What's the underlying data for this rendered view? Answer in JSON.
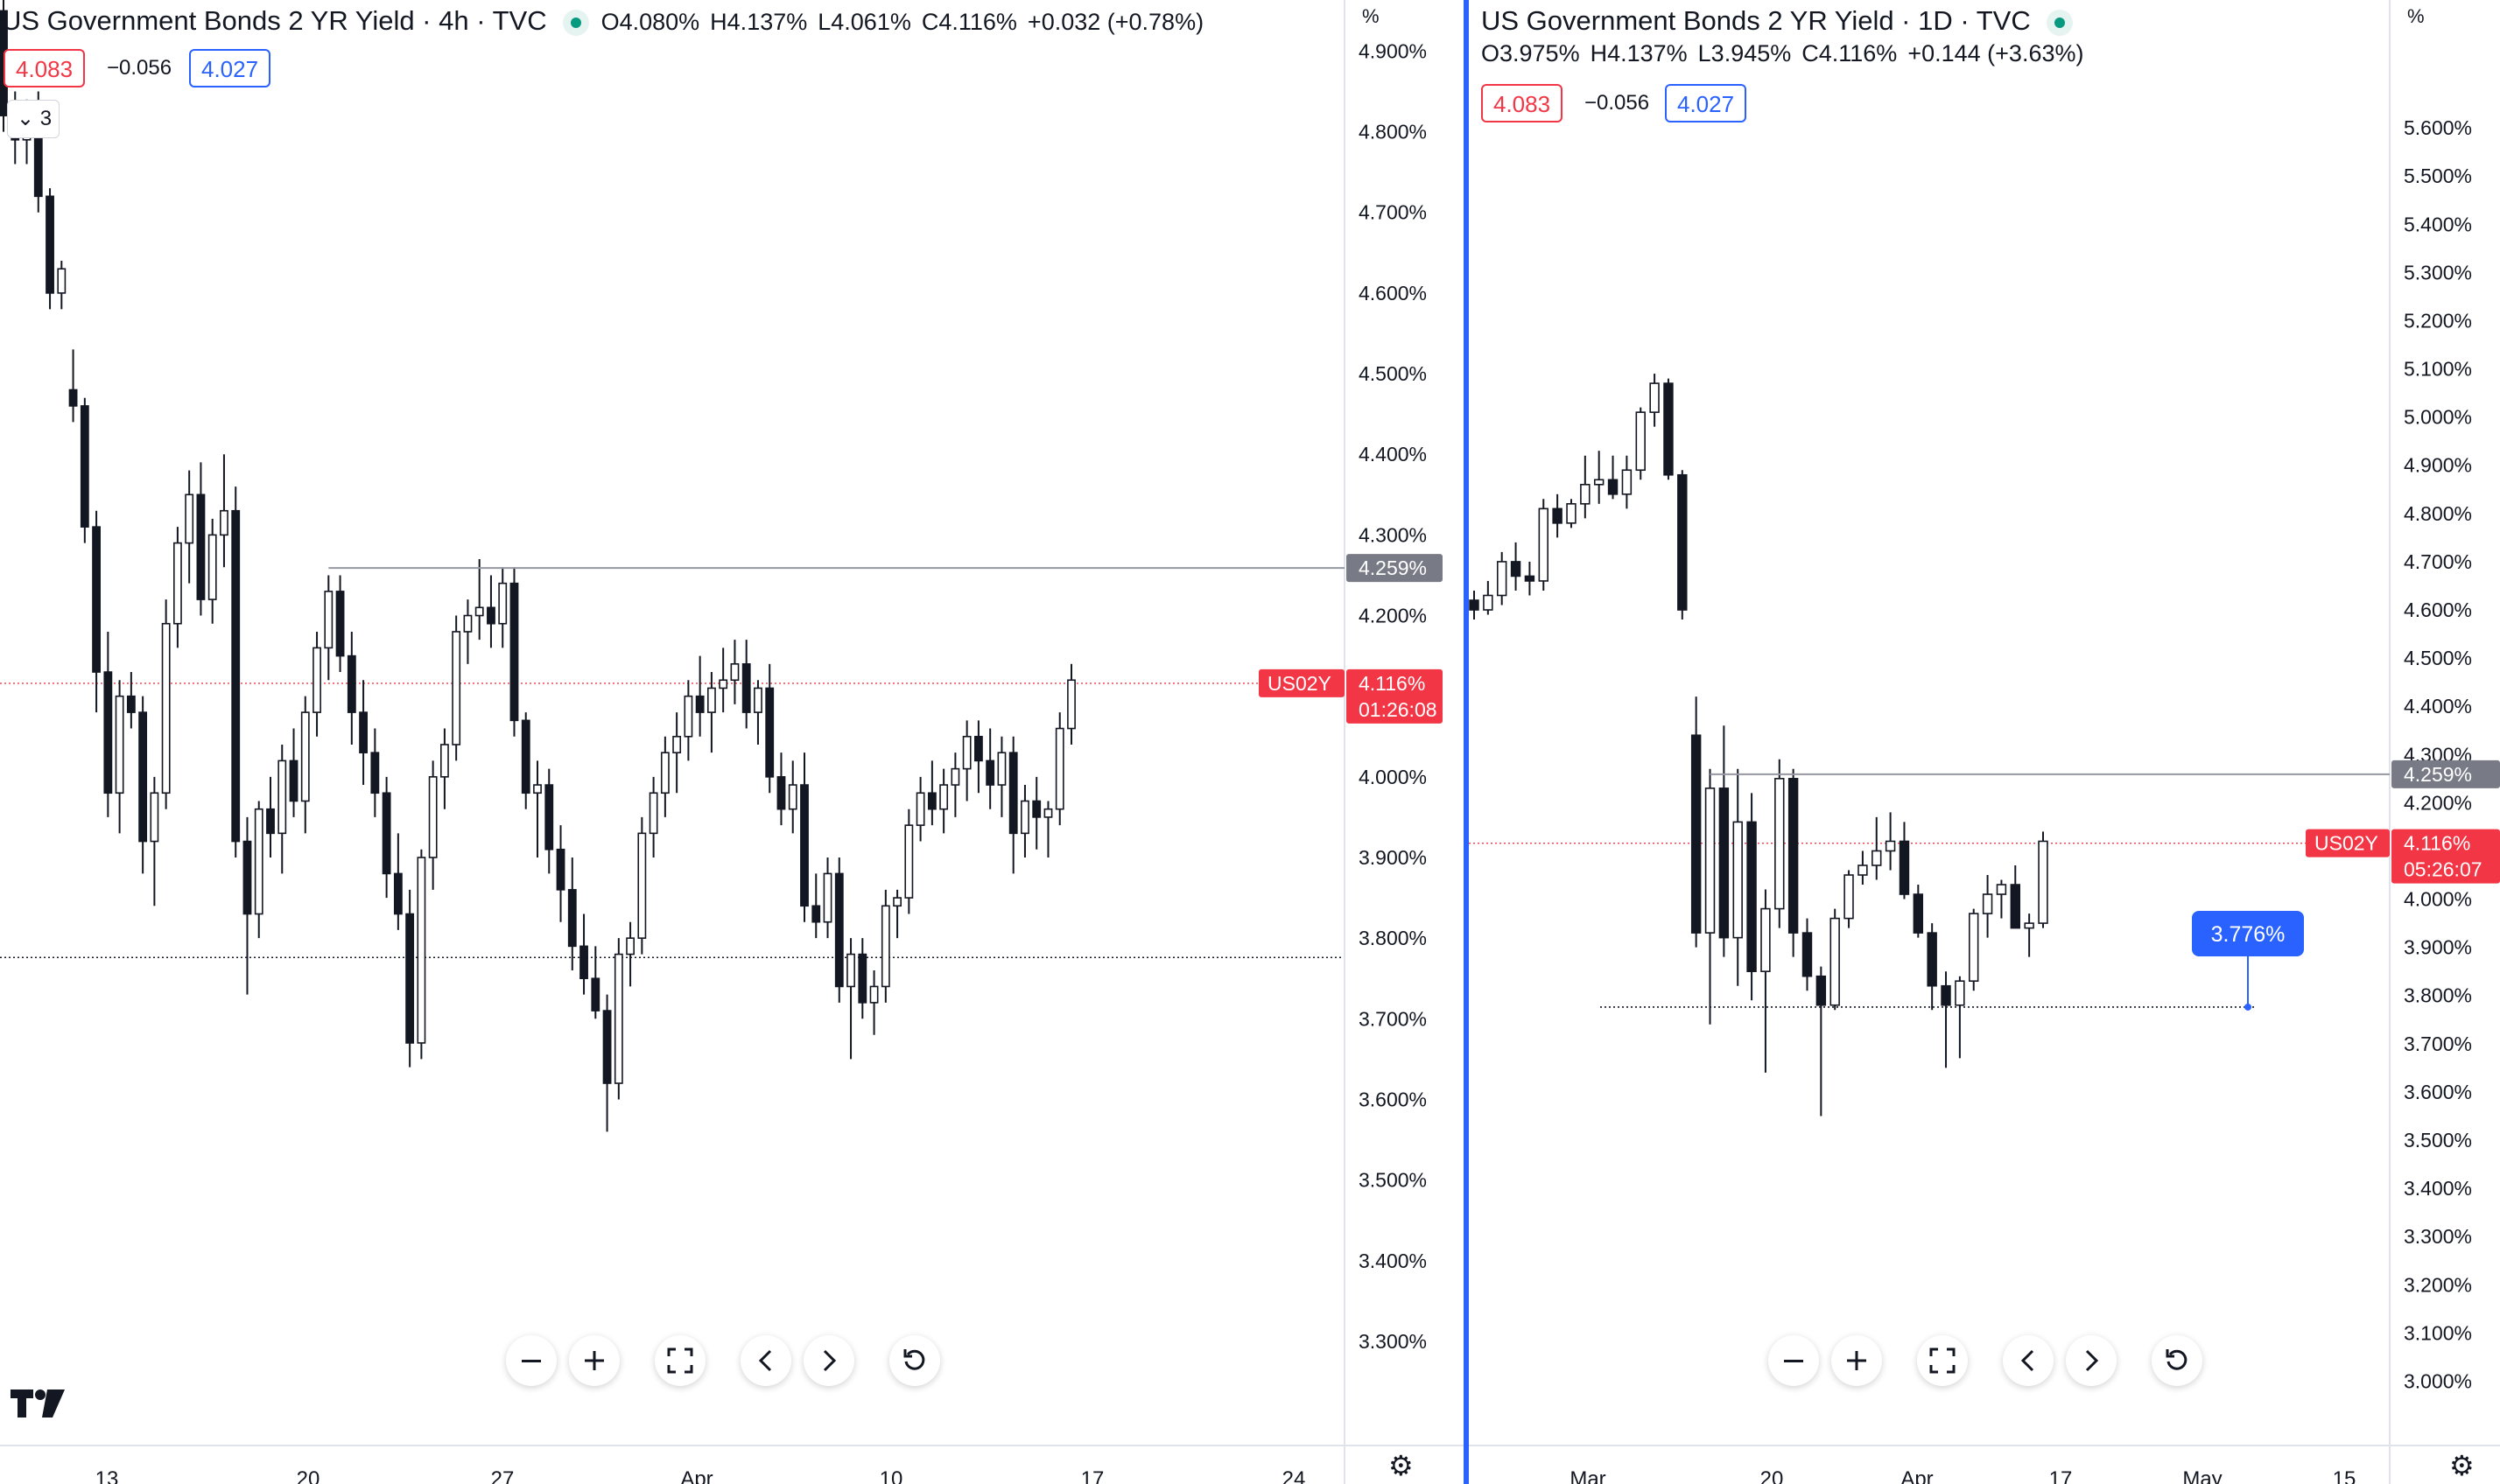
{
  "colors": {
    "accent": "#2962ff",
    "down": "#f23645",
    "grid": "#ffffff",
    "text": "#131722"
  },
  "left": {
    "title": "US Government Bonds 2 YR Yield · 4h · TVC",
    "ohlc": {
      "o": "O4.080%",
      "h": "H4.137%",
      "l": "L4.061%",
      "c": "C4.116%",
      "chg": "+0.032 (+0.78%)"
    },
    "sell": "4.083",
    "spread": "−0.056",
    "buy": "4.027",
    "indicators_count": "3",
    "symbol_tag": "US02Y",
    "last_price": "4.116%",
    "countdown": "01:26:08",
    "level_label": "4.259%",
    "axis_unit": "%"
  },
  "right": {
    "title": "US Government Bonds 2 YR Yield · 1D · TVC",
    "ohlc": {
      "o": "O3.975%",
      "h": "H4.137%",
      "l": "L3.945%",
      "c": "C4.116%",
      "chg": "+0.144 (+3.63%)"
    },
    "sell": "4.083",
    "spread": "−0.056",
    "buy": "4.027",
    "symbol_tag": "US02Y",
    "last_price": "4.116%",
    "countdown": "05:26:07",
    "level_label": "4.259%",
    "alert_label": "3.776%",
    "axis_unit": "%"
  },
  "chart_data": [
    {
      "type": "candlestick",
      "title": "US Government Bonds 2 YR Yield · 4h · TVC",
      "y_axis_unit": "%",
      "ylim": [
        3.25,
        4.92
      ],
      "y_ticks": [
        "4.900%",
        "4.800%",
        "4.700%",
        "4.600%",
        "4.500%",
        "4.400%",
        "4.300%",
        "4.200%",
        "4.100%",
        "4.000%",
        "3.900%",
        "3.800%",
        "3.700%",
        "3.600%",
        "3.500%",
        "3.400%",
        "3.300%"
      ],
      "x_ticks": [
        "13",
        "20",
        "27",
        "Apr",
        "10",
        "17",
        "24"
      ],
      "last_price": 4.116,
      "horizontal_line": 4.259,
      "dotted_line": 3.776,
      "candles_ohlc": [
        [
          4.95,
          4.97,
          4.8,
          4.82
        ],
        [
          4.82,
          4.85,
          4.76,
          4.79
        ],
        [
          4.79,
          4.84,
          4.76,
          4.83
        ],
        [
          4.83,
          4.85,
          4.7,
          4.72
        ],
        [
          4.72,
          4.73,
          4.58,
          4.6
        ],
        [
          4.6,
          4.64,
          4.58,
          4.63
        ],
        [
          4.48,
          4.53,
          4.44,
          4.46
        ],
        [
          4.46,
          4.47,
          4.29,
          4.31
        ],
        [
          4.31,
          4.33,
          4.08,
          4.13
        ],
        [
          4.13,
          4.18,
          3.95,
          3.98
        ],
        [
          3.98,
          4.12,
          3.93,
          4.1
        ],
        [
          4.1,
          4.13,
          4.06,
          4.08
        ],
        [
          4.08,
          4.1,
          3.88,
          3.92
        ],
        [
          3.92,
          4.0,
          3.84,
          3.98
        ],
        [
          3.98,
          4.22,
          3.96,
          4.19
        ],
        [
          4.19,
          4.31,
          4.16,
          4.29
        ],
        [
          4.29,
          4.38,
          4.24,
          4.35
        ],
        [
          4.35,
          4.39,
          4.2,
          4.22
        ],
        [
          4.22,
          4.32,
          4.19,
          4.3
        ],
        [
          4.3,
          4.4,
          4.26,
          4.33
        ],
        [
          4.33,
          4.36,
          3.9,
          3.92
        ],
        [
          3.92,
          3.95,
          3.73,
          3.83
        ],
        [
          3.83,
          3.97,
          3.8,
          3.96
        ],
        [
          3.96,
          4.0,
          3.9,
          3.93
        ],
        [
          3.93,
          4.04,
          3.88,
          4.02
        ],
        [
          4.02,
          4.06,
          3.95,
          3.97
        ],
        [
          3.97,
          4.1,
          3.93,
          4.08
        ],
        [
          4.08,
          4.18,
          4.05,
          4.16
        ],
        [
          4.16,
          4.25,
          4.12,
          4.23
        ],
        [
          4.23,
          4.25,
          4.13,
          4.15
        ],
        [
          4.15,
          4.18,
          4.04,
          4.08
        ],
        [
          4.08,
          4.12,
          3.99,
          4.03
        ],
        [
          4.03,
          4.06,
          3.95,
          3.98
        ],
        [
          3.98,
          4.0,
          3.85,
          3.88
        ],
        [
          3.88,
          3.93,
          3.81,
          3.83
        ],
        [
          3.83,
          3.86,
          3.64,
          3.67
        ],
        [
          3.67,
          3.91,
          3.65,
          3.9
        ],
        [
          3.9,
          4.02,
          3.86,
          4.0
        ],
        [
          4.0,
          4.06,
          3.96,
          4.04
        ],
        [
          4.04,
          4.2,
          4.02,
          4.18
        ],
        [
          4.18,
          4.22,
          4.14,
          4.2
        ],
        [
          4.2,
          4.27,
          4.17,
          4.21
        ],
        [
          4.21,
          4.25,
          4.16,
          4.19
        ],
        [
          4.19,
          4.26,
          4.16,
          4.24
        ],
        [
          4.24,
          4.26,
          4.05,
          4.07
        ],
        [
          4.07,
          4.08,
          3.96,
          3.98
        ],
        [
          3.98,
          4.02,
          3.9,
          3.99
        ],
        [
          3.99,
          4.01,
          3.88,
          3.91
        ],
        [
          3.91,
          3.94,
          3.82,
          3.86
        ],
        [
          3.86,
          3.9,
          3.76,
          3.79
        ],
        [
          3.79,
          3.83,
          3.73,
          3.75
        ],
        [
          3.75,
          3.79,
          3.7,
          3.71
        ],
        [
          3.71,
          3.73,
          3.56,
          3.62
        ],
        [
          3.62,
          3.8,
          3.6,
          3.78
        ],
        [
          3.78,
          3.82,
          3.74,
          3.8
        ],
        [
          3.8,
          3.95,
          3.78,
          3.93
        ],
        [
          3.93,
          4.0,
          3.9,
          3.98
        ],
        [
          3.98,
          4.05,
          3.95,
          4.03
        ],
        [
          4.03,
          4.08,
          3.98,
          4.05
        ],
        [
          4.05,
          4.12,
          4.02,
          4.1
        ],
        [
          4.1,
          4.15,
          4.05,
          4.08
        ],
        [
          4.08,
          4.13,
          4.03,
          4.11
        ],
        [
          4.11,
          4.16,
          4.08,
          4.12
        ],
        [
          4.12,
          4.17,
          4.09,
          4.14
        ],
        [
          4.14,
          4.17,
          4.06,
          4.08
        ],
        [
          4.08,
          4.12,
          4.04,
          4.11
        ],
        [
          4.11,
          4.14,
          3.98,
          4.0
        ],
        [
          4.0,
          4.03,
          3.94,
          3.96
        ],
        [
          3.96,
          4.02,
          3.93,
          3.99
        ],
        [
          3.99,
          4.03,
          3.82,
          3.84
        ],
        [
          3.84,
          3.88,
          3.8,
          3.82
        ],
        [
          3.82,
          3.9,
          3.8,
          3.88
        ],
        [
          3.88,
          3.9,
          3.72,
          3.74
        ],
        [
          3.74,
          3.8,
          3.65,
          3.78
        ],
        [
          3.78,
          3.8,
          3.7,
          3.72
        ],
        [
          3.72,
          3.76,
          3.68,
          3.74
        ],
        [
          3.74,
          3.86,
          3.72,
          3.84
        ],
        [
          3.84,
          3.86,
          3.8,
          3.85
        ],
        [
          3.85,
          3.96,
          3.83,
          3.94
        ],
        [
          3.94,
          4.0,
          3.92,
          3.98
        ],
        [
          3.98,
          4.02,
          3.94,
          3.96
        ],
        [
          3.96,
          4.01,
          3.93,
          3.99
        ],
        [
          3.99,
          4.03,
          3.95,
          4.01
        ],
        [
          4.01,
          4.07,
          3.97,
          4.05
        ],
        [
          4.05,
          4.07,
          3.98,
          4.02
        ],
        [
          4.02,
          4.06,
          3.96,
          3.99
        ],
        [
          3.99,
          4.05,
          3.95,
          4.03
        ],
        [
          4.03,
          4.05,
          3.88,
          3.93
        ],
        [
          3.93,
          3.99,
          3.9,
          3.97
        ],
        [
          3.97,
          4.0,
          3.91,
          3.95
        ],
        [
          3.95,
          3.97,
          3.9,
          3.96
        ],
        [
          3.96,
          4.08,
          3.94,
          4.06
        ],
        [
          4.06,
          4.14,
          4.04,
          4.12
        ]
      ]
    },
    {
      "type": "candlestick",
      "title": "US Government Bonds 2 YR Yield · 1D · TVC",
      "y_axis_unit": "%",
      "ylim": [
        2.95,
        5.72
      ],
      "y_ticks": [
        "5.600%",
        "5.500%",
        "5.400%",
        "5.300%",
        "5.200%",
        "5.100%",
        "5.000%",
        "4.900%",
        "4.800%",
        "4.700%",
        "4.600%",
        "4.500%",
        "4.400%",
        "4.300%",
        "4.200%",
        "4.100%",
        "4.000%",
        "3.900%",
        "3.800%",
        "3.700%",
        "3.600%",
        "3.500%",
        "3.400%",
        "3.300%",
        "3.200%",
        "3.100%",
        "3.000%"
      ],
      "x_ticks": [
        "Mar",
        "20",
        "Apr",
        "17",
        "May",
        "15"
      ],
      "last_price": 4.116,
      "horizontal_line": 4.259,
      "alert_line": 3.776,
      "candles_ohlc": [
        [
          4.62,
          4.64,
          4.58,
          4.6
        ],
        [
          4.6,
          4.66,
          4.59,
          4.63
        ],
        [
          4.63,
          4.72,
          4.61,
          4.7
        ],
        [
          4.7,
          4.74,
          4.64,
          4.67
        ],
        [
          4.67,
          4.7,
          4.63,
          4.66
        ],
        [
          4.66,
          4.83,
          4.64,
          4.81
        ],
        [
          4.81,
          4.84,
          4.75,
          4.78
        ],
        [
          4.78,
          4.83,
          4.77,
          4.82
        ],
        [
          4.82,
          4.92,
          4.79,
          4.86
        ],
        [
          4.86,
          4.93,
          4.82,
          4.87
        ],
        [
          4.87,
          4.92,
          4.83,
          4.84
        ],
        [
          4.84,
          4.92,
          4.81,
          4.89
        ],
        [
          4.89,
          5.02,
          4.87,
          5.01
        ],
        [
          5.01,
          5.09,
          4.98,
          5.07
        ],
        [
          5.07,
          5.08,
          4.87,
          4.88
        ],
        [
          4.88,
          4.89,
          4.58,
          4.6
        ],
        [
          4.34,
          4.42,
          3.9,
          3.93
        ],
        [
          3.93,
          4.27,
          3.74,
          4.23
        ],
        [
          4.23,
          4.36,
          3.88,
          3.92
        ],
        [
          3.92,
          4.27,
          3.82,
          4.16
        ],
        [
          4.16,
          4.22,
          3.79,
          3.85
        ],
        [
          3.85,
          4.02,
          3.64,
          3.98
        ],
        [
          3.98,
          4.29,
          3.94,
          4.25
        ],
        [
          4.25,
          4.27,
          3.88,
          3.93
        ],
        [
          3.93,
          3.96,
          3.81,
          3.84
        ],
        [
          3.84,
          3.86,
          3.55,
          3.78
        ],
        [
          3.78,
          3.98,
          3.77,
          3.96
        ],
        [
          3.96,
          4.06,
          3.94,
          4.05
        ],
        [
          4.05,
          4.1,
          4.03,
          4.07
        ],
        [
          4.07,
          4.17,
          4.04,
          4.1
        ],
        [
          4.1,
          4.18,
          4.06,
          4.12
        ],
        [
          4.12,
          4.16,
          4.0,
          4.01
        ],
        [
          4.01,
          4.03,
          3.92,
          3.93
        ],
        [
          3.93,
          3.95,
          3.77,
          3.82
        ],
        [
          3.82,
          3.85,
          3.65,
          3.78
        ],
        [
          3.78,
          3.84,
          3.67,
          3.83
        ],
        [
          3.83,
          3.98,
          3.81,
          3.97
        ],
        [
          3.97,
          4.05,
          3.92,
          4.01
        ],
        [
          4.01,
          4.04,
          3.96,
          4.03
        ],
        [
          4.03,
          4.07,
          3.94,
          3.94
        ],
        [
          3.94,
          3.97,
          3.88,
          3.95
        ],
        [
          3.95,
          4.14,
          3.94,
          4.12
        ]
      ]
    }
  ]
}
